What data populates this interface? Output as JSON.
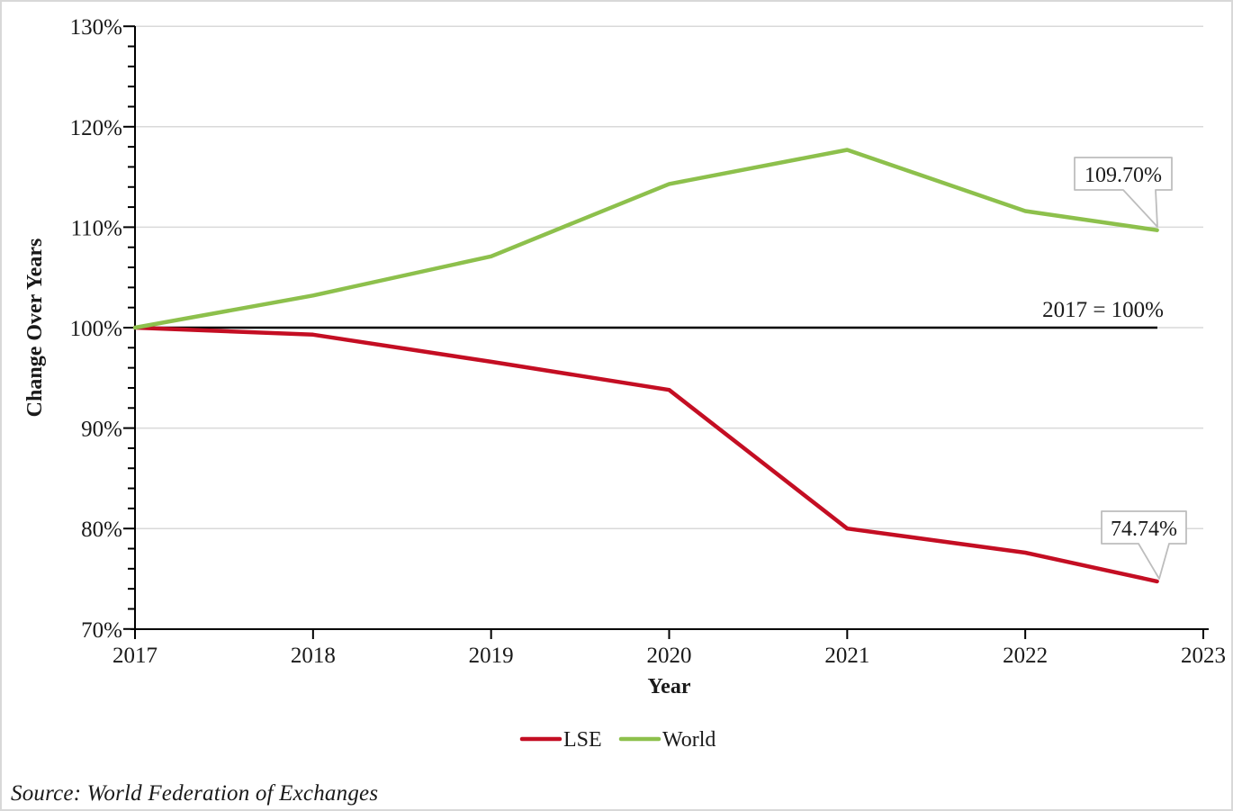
{
  "source_note": "Source: World Federation of Exchanges",
  "colors": {
    "grid": "#d9d9d9",
    "axis": "#000000",
    "baseline": "#000000",
    "callout_border": "#bdbdbd",
    "lse_red": "#c40e23",
    "world_green": "#8dc04c"
  },
  "chart_data": {
    "type": "line",
    "title": "",
    "xlabel": "Year",
    "ylabel": "Change Over Years",
    "baseline_annotation": "2017 = 100%",
    "xlim": [
      2017,
      2023
    ],
    "ylim": [
      70,
      130
    ],
    "x_tick_labels": [
      "2017",
      "2018",
      "2019",
      "2020",
      "2021",
      "2022",
      "2023"
    ],
    "y_tick_values": [
      70,
      80,
      90,
      100,
      110,
      120,
      130
    ],
    "y_tick_labels": [
      "70%",
      "80%",
      "90%",
      "100%",
      "110%",
      "120%",
      "130%"
    ],
    "grid": "horizontal-only",
    "legend_position": "bottom-center",
    "series": [
      {
        "name": "LSE",
        "color": "#c40e23",
        "x": [
          2017,
          2018,
          2019,
          2020,
          2021,
          2022,
          2022.74
        ],
        "values": [
          100,
          99.3,
          96.6,
          93.8,
          80.0,
          77.6,
          74.74
        ],
        "end_label": "74.74%"
      },
      {
        "name": "World",
        "color": "#8dc04c",
        "x": [
          2017,
          2018,
          2019,
          2020,
          2021,
          2022,
          2022.74
        ],
        "values": [
          100,
          103.2,
          107.1,
          114.3,
          117.7,
          111.6,
          109.7
        ],
        "end_label": "109.70%"
      }
    ]
  }
}
